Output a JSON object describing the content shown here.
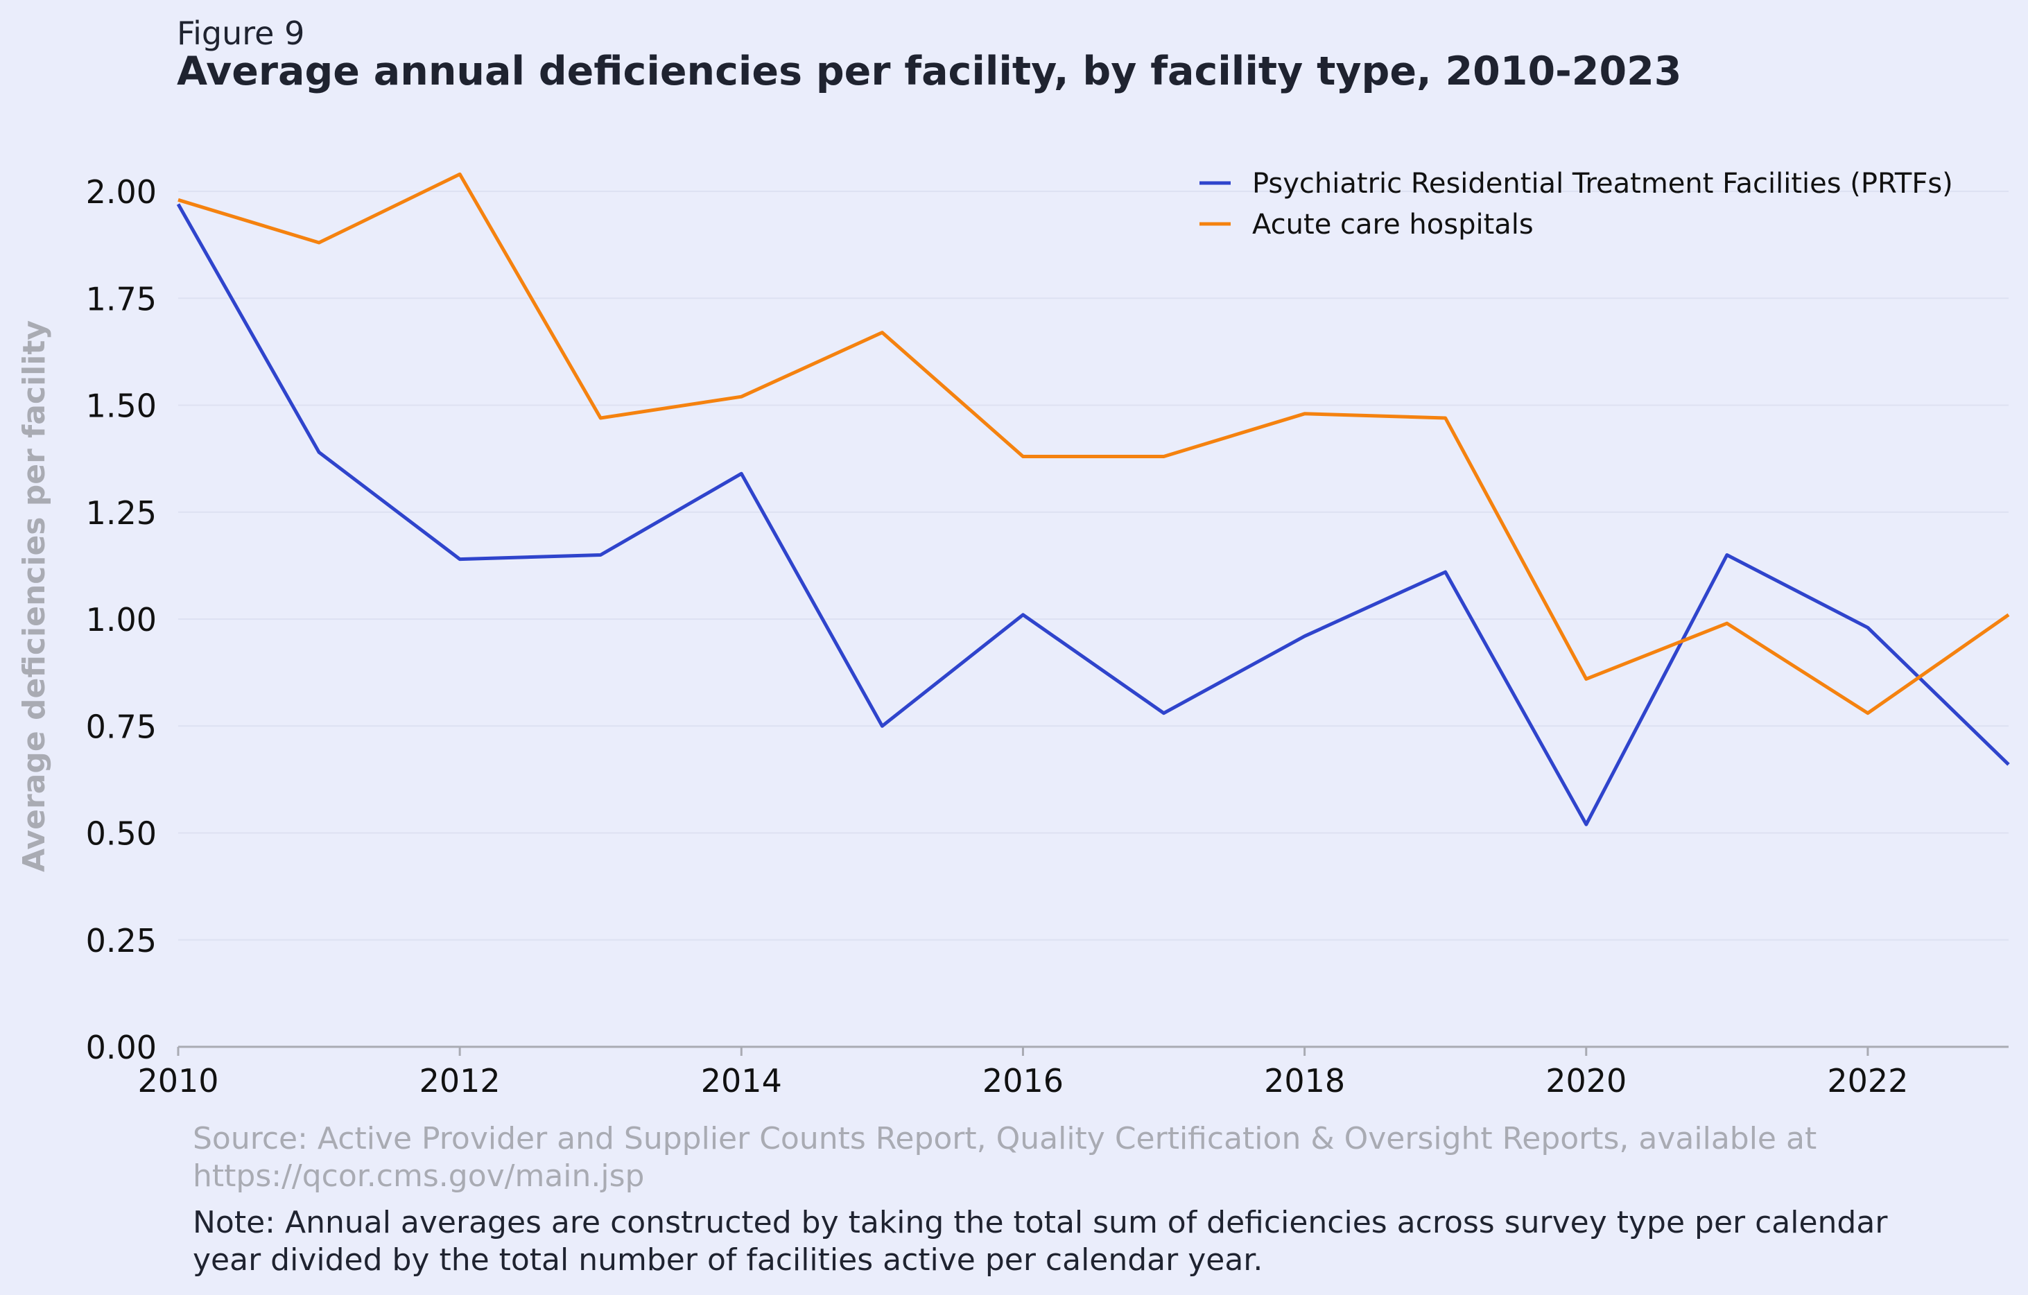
{
  "figure_label": "Figure 9",
  "colors": {
    "background": "#eaedfb",
    "title": "#1f2330",
    "tick": "#111111",
    "ylabel": "#a9abb3",
    "grid": "#dde1f2",
    "axis": "#a9abb3",
    "source": "#a9abb3",
    "note": "#1f2330"
  },
  "chart_data": {
    "type": "line",
    "title": "Average annual deficiencies per facility, by facility type, 2010-2023",
    "xlabel": "",
    "ylabel": "Average deficiencies per facility",
    "xlim": [
      2010,
      2023
    ],
    "ylim": [
      0,
      2.1
    ],
    "x_ticks": [
      "2010",
      "2012",
      "2014",
      "2016",
      "2018",
      "2020",
      "2022"
    ],
    "y_ticks": [
      "0.00",
      "0.25",
      "0.50",
      "0.75",
      "1.00",
      "1.25",
      "1.50",
      "1.75",
      "2.00"
    ],
    "grid": "horizontal",
    "legend_position": "top-right",
    "x": [
      2010,
      2011,
      2012,
      2013,
      2014,
      2015,
      2016,
      2017,
      2018,
      2019,
      2020,
      2021,
      2022,
      2023
    ],
    "series": [
      {
        "name": "Psychiatric Residential Treatment Facilities (PRTFs)",
        "color": "#2f44cc",
        "values": [
          1.97,
          1.39,
          1.14,
          1.15,
          1.34,
          0.75,
          1.01,
          0.78,
          0.96,
          1.11,
          0.52,
          1.15,
          0.98,
          0.66
        ]
      },
      {
        "name": "Acute care hospitals",
        "color": "#f5820f",
        "values": [
          1.98,
          1.88,
          2.04,
          1.47,
          1.52,
          1.67,
          1.38,
          1.38,
          1.48,
          1.47,
          0.86,
          0.99,
          0.78,
          1.01
        ]
      }
    ]
  },
  "footer": {
    "source_line1": "Source: Active Provider and Supplier Counts Report, Quality Certification & Oversight Reports, available at",
    "source_line2": "https://qcor.cms.gov/main.jsp",
    "note_line1": "Note: Annual averages are constructed by taking the total sum of deficiencies across survey type per calendar",
    "note_line2": "year divided by the total number of facilities active per calendar year."
  }
}
